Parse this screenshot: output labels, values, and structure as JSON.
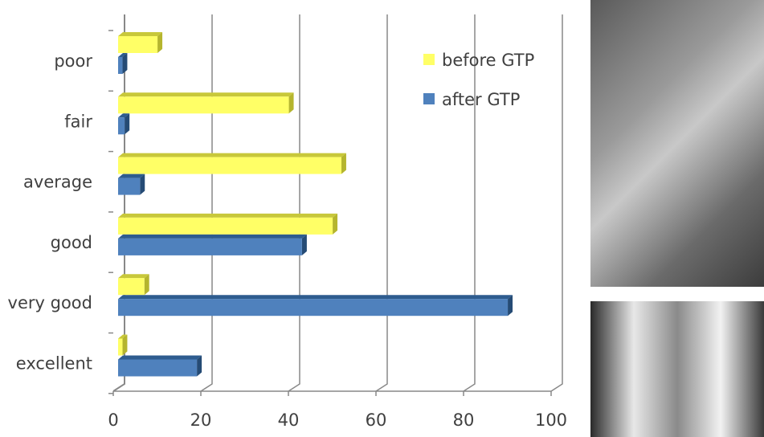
{
  "chart_data": {
    "type": "bar",
    "orientation": "horizontal",
    "categories": [
      "poor",
      "fair",
      "average",
      "good",
      "very good",
      "excellent"
    ],
    "series": [
      {
        "name": "before GTP",
        "color": "#FFFF66",
        "values": [
          9,
          39,
          51,
          49,
          6,
          1
        ]
      },
      {
        "name": "after GTP",
        "color": "#4F81BD",
        "values": [
          1,
          1.5,
          5,
          42,
          89,
          18
        ]
      }
    ],
    "xlim": [
      0,
      100
    ],
    "xticks": [
      "0",
      "20",
      "40",
      "60",
      "80",
      "100"
    ],
    "grid": true,
    "legend": "top-right",
    "title": "",
    "xlabel": "",
    "ylabel": ""
  }
}
